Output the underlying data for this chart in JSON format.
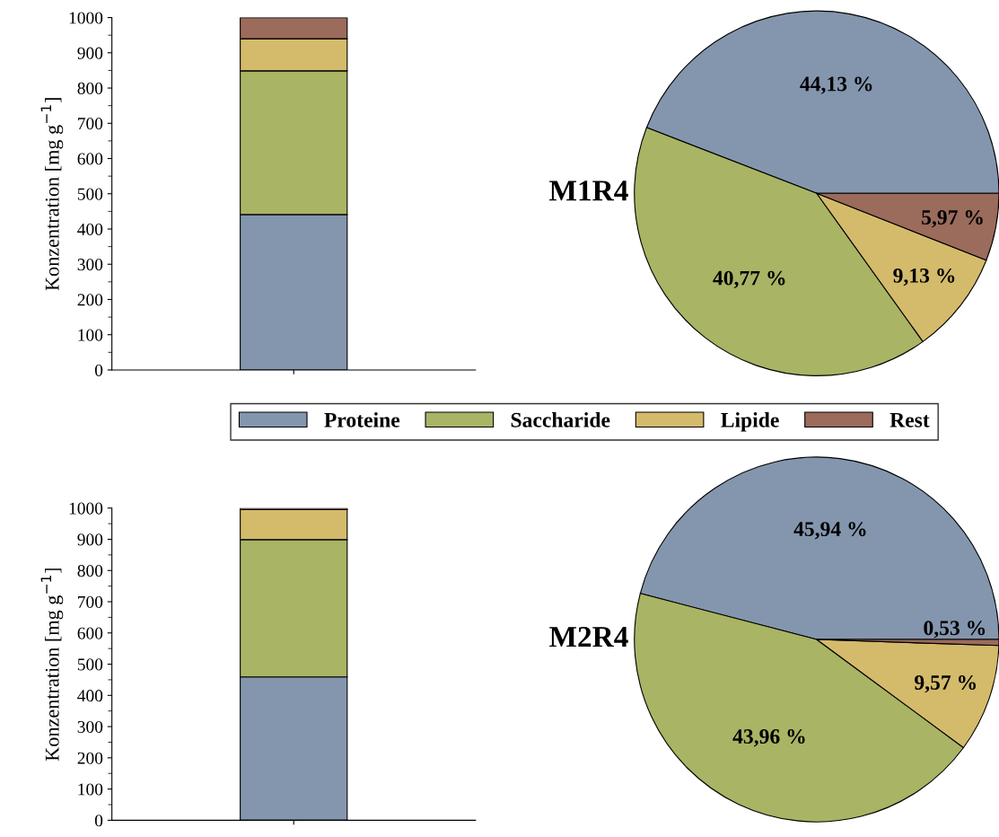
{
  "chart_data": [
    {
      "type": "bar",
      "stacked": true,
      "categories": [
        null
      ],
      "ylabel": "Konzentration [mg g$^{−1}$]",
      "ylim": [
        0,
        1000
      ],
      "yticks": [
        0,
        100,
        200,
        300,
        400,
        500,
        600,
        700,
        800,
        900,
        1000
      ],
      "series": [
        {
          "color": "#8496ae",
          "values": [
            441
          ]
        },
        {
          "color": "#a9b464",
          "values": [
            408
          ]
        },
        {
          "color": "#d4bb6b",
          "values": [
            91
          ]
        },
        {
          "color": "#9b6b5b",
          "values": [
            60
          ]
        }
      ]
    },
    {
      "type": "pie",
      "title": "M1R4",
      "legend": "bottom",
      "categories": [
        "Proteine",
        "Saccharide",
        "Lipide",
        "Rest"
      ],
      "values": [
        44.13,
        40.77,
        9.13,
        5.97
      ],
      "value_labels": [
        "44,13 %",
        "40,77 %",
        "9,13 %",
        "5,97 %"
      ],
      "colors": [
        "#8496ae",
        "#a9b464",
        "#d4bb6b",
        "#9b6b5b"
      ]
    },
    {
      "type": "bar",
      "stacked": true,
      "categories": [
        null
      ],
      "ylabel": "Konzentration [mg g$^{−1}$]",
      "ylim": [
        0,
        1000
      ],
      "yticks": [
        0,
        100,
        200,
        300,
        400,
        500,
        600,
        700,
        800,
        900,
        1000
      ],
      "series": [
        {
          "color": "#8496ae",
          "values": [
            459
          ]
        },
        {
          "color": "#a9b464",
          "values": [
            440
          ]
        },
        {
          "color": "#d4bb6b",
          "values": [
            96
          ]
        },
        {
          "color": "#9b6b5b",
          "values": [
            5
          ]
        }
      ]
    },
    {
      "type": "pie",
      "title": "M2R4",
      "categories": [
        null,
        null,
        null,
        null
      ],
      "values": [
        45.94,
        43.96,
        9.57,
        0.53
      ],
      "value_labels": [
        "45,94 %",
        "43,96 %",
        "9,57 %",
        "0,53 %"
      ],
      "colors": [
        "#8496ae",
        "#a9b464",
        "#d4bb6b",
        "#9b6b5b"
      ]
    }
  ]
}
